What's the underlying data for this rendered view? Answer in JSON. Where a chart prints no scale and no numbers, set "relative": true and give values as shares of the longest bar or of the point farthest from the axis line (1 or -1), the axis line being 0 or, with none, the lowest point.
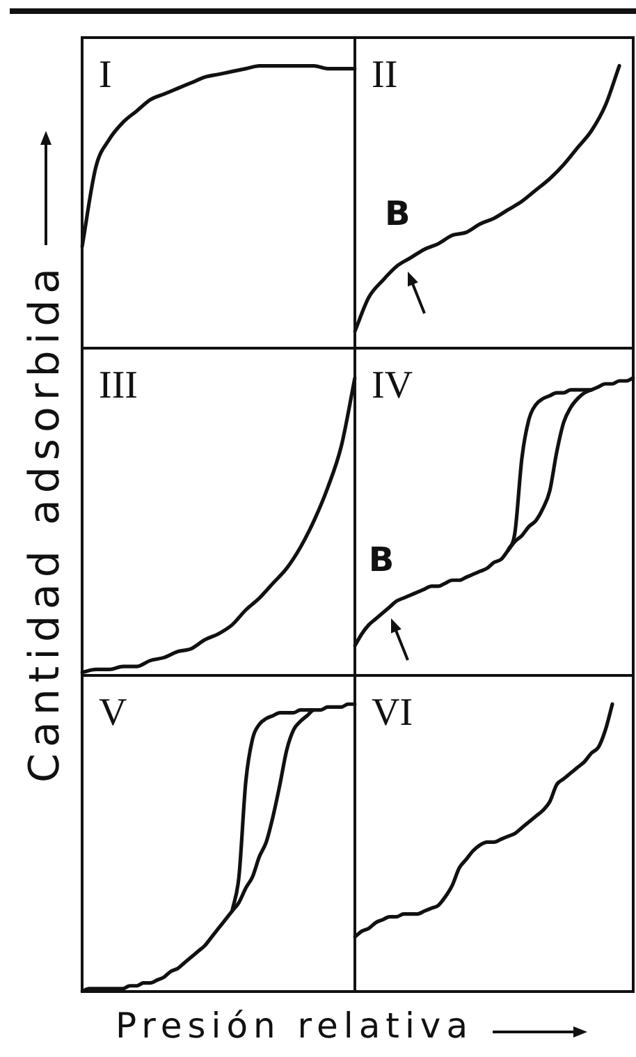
{
  "chart_data": [
    {
      "type": "line",
      "title": "I",
      "relative": true,
      "categories": [
        null,
        null,
        null,
        null,
        null,
        null,
        null,
        null,
        null,
        null,
        null,
        null,
        null,
        null,
        null,
        null,
        null,
        null,
        null,
        null,
        null
      ],
      "series": [
        {
          "color": "#111111",
          "values": [
            0.36,
            0.64,
            0.74,
            0.8,
            0.84,
            0.88,
            0.9,
            0.92,
            0.94,
            0.96,
            0.97,
            0.98,
            0.99,
            1.0,
            1.0,
            1.0,
            1.0,
            1.0,
            0.99,
            0.99,
            0.99
          ]
        }
      ]
    },
    {
      "type": "line",
      "title": "II",
      "relative": true,
      "categories": [
        null,
        null,
        null,
        null,
        null,
        null,
        null,
        null,
        null,
        null,
        null,
        null,
        null,
        null,
        null,
        null,
        null,
        null,
        null,
        null,
        null
      ],
      "series": [
        {
          "color": "#111111",
          "values": [
            0.06,
            0.18,
            0.24,
            0.29,
            0.32,
            0.35,
            0.37,
            0.4,
            0.41,
            0.44,
            0.46,
            0.49,
            0.52,
            0.56,
            0.6,
            0.65,
            0.71,
            0.77,
            0.86,
            1.0,
            null
          ]
        }
      ],
      "annotations": [
        {
          "text": "B",
          "y": 0.31
        }
      ]
    },
    {
      "type": "line",
      "title": "III",
      "relative": true,
      "ylabel": "Cantidad adsorbida",
      "categories": [
        null,
        null,
        null,
        null,
        null,
        null,
        null,
        null,
        null,
        null,
        null,
        null,
        null,
        null,
        null,
        null,
        null,
        null,
        null,
        null,
        null
      ],
      "series": [
        {
          "color": "#111111",
          "values": [
            0.01,
            0.02,
            0.02,
            0.03,
            0.03,
            0.05,
            0.06,
            0.08,
            0.09,
            0.12,
            0.14,
            0.17,
            0.22,
            0.26,
            0.31,
            0.36,
            0.43,
            0.52,
            0.63,
            0.77,
            1.0
          ]
        }
      ]
    },
    {
      "type": "line",
      "title": "IV",
      "relative": true,
      "categories": [
        null,
        null,
        null,
        null,
        null,
        null,
        null,
        null,
        null,
        null,
        null,
        null,
        null,
        null,
        null,
        null,
        null,
        null,
        null,
        null,
        null,
        null,
        null,
        null,
        null,
        null,
        null,
        null,
        null,
        null,
        null,
        null,
        null,
        null,
        null,
        null,
        null,
        null,
        null,
        null,
        null
      ],
      "series": [
        {
          "color": "#111111",
          "values": [
            0.1,
            0.14,
            0.17,
            0.19,
            0.21,
            0.23,
            0.25,
            0.26,
            0.27,
            0.28,
            0.29,
            0.3,
            0.3,
            0.31,
            0.32,
            0.32,
            0.33,
            0.34,
            0.35,
            0.36,
            0.38,
            0.39,
            0.42,
            0.45,
            0.47,
            0.5,
            0.52,
            0.56,
            0.62,
            0.75,
            0.85,
            0.9,
            0.93,
            0.95,
            0.96,
            0.97,
            0.98,
            0.98,
            0.99,
            0.99,
            1.0
          ]
        },
        {
          "color": "#111111",
          "values": [
            null,
            null,
            null,
            null,
            null,
            null,
            null,
            null,
            null,
            null,
            null,
            null,
            null,
            null,
            null,
            null,
            null,
            null,
            null,
            null,
            null,
            null,
            0.42,
            0.48,
            0.73,
            0.86,
            0.91,
            0.93,
            0.94,
            0.95,
            0.95,
            0.96,
            0.96,
            0.96,
            0.96,
            null,
            null,
            null,
            null,
            null,
            null
          ]
        }
      ],
      "annotations": [
        {
          "text": "B",
          "y": 0.23
        }
      ]
    },
    {
      "type": "line",
      "title": "V",
      "relative": true,
      "xlabel": "Presión relativa",
      "categories": [
        null,
        null,
        null,
        null,
        null,
        null,
        null,
        null,
        null,
        null,
        null,
        null,
        null,
        null,
        null,
        null,
        null,
        null,
        null,
        null,
        null,
        null,
        null,
        null,
        null,
        null,
        null,
        null,
        null,
        null,
        null,
        null,
        null,
        null,
        null,
        null,
        null,
        null,
        null,
        null,
        null
      ],
      "series": [
        {
          "color": "#111111",
          "values": [
            0.0,
            0.01,
            0.01,
            0.01,
            0.01,
            0.01,
            0.01,
            0.02,
            0.02,
            0.03,
            0.03,
            0.04,
            0.05,
            0.07,
            0.08,
            0.1,
            0.12,
            0.14,
            0.16,
            0.19,
            0.22,
            0.25,
            0.28,
            0.31,
            0.36,
            0.4,
            0.47,
            0.52,
            0.61,
            0.72,
            0.84,
            0.91,
            0.94,
            0.96,
            0.98,
            0.98,
            0.99,
            0.99,
            0.99,
            1.0,
            1.0
          ]
        },
        {
          "color": "#111111",
          "values": [
            null,
            null,
            null,
            null,
            null,
            null,
            null,
            null,
            null,
            null,
            null,
            null,
            null,
            null,
            null,
            null,
            null,
            null,
            null,
            null,
            null,
            null,
            0.28,
            0.4,
            0.73,
            0.88,
            0.93,
            0.95,
            0.96,
            0.97,
            0.97,
            0.97,
            0.98,
            0.98,
            0.98,
            null,
            null,
            null,
            null,
            null,
            null
          ]
        }
      ]
    },
    {
      "type": "line",
      "title": "VI",
      "relative": true,
      "categories": [
        null,
        null,
        null,
        null,
        null,
        null,
        null,
        null,
        null,
        null,
        null,
        null,
        null,
        null,
        null,
        null,
        null,
        null,
        null,
        null,
        null,
        null,
        null,
        null,
        null,
        null,
        null,
        null,
        null,
        null,
        null,
        null,
        null,
        null,
        null,
        null,
        null,
        null,
        null,
        null,
        null
      ],
      "series": [
        {
          "color": "#111111",
          "values": [
            0.19,
            0.21,
            0.22,
            0.24,
            0.25,
            0.26,
            0.26,
            0.27,
            0.27,
            0.27,
            0.28,
            0.29,
            0.3,
            0.33,
            0.37,
            0.43,
            0.46,
            0.49,
            0.51,
            0.52,
            0.52,
            0.53,
            0.54,
            0.55,
            0.57,
            0.59,
            0.61,
            0.63,
            0.66,
            0.72,
            0.74,
            0.76,
            0.78,
            0.8,
            0.83,
            0.85,
            0.91,
            1.0,
            null,
            null,
            null
          ]
        }
      ]
    }
  ]
}
